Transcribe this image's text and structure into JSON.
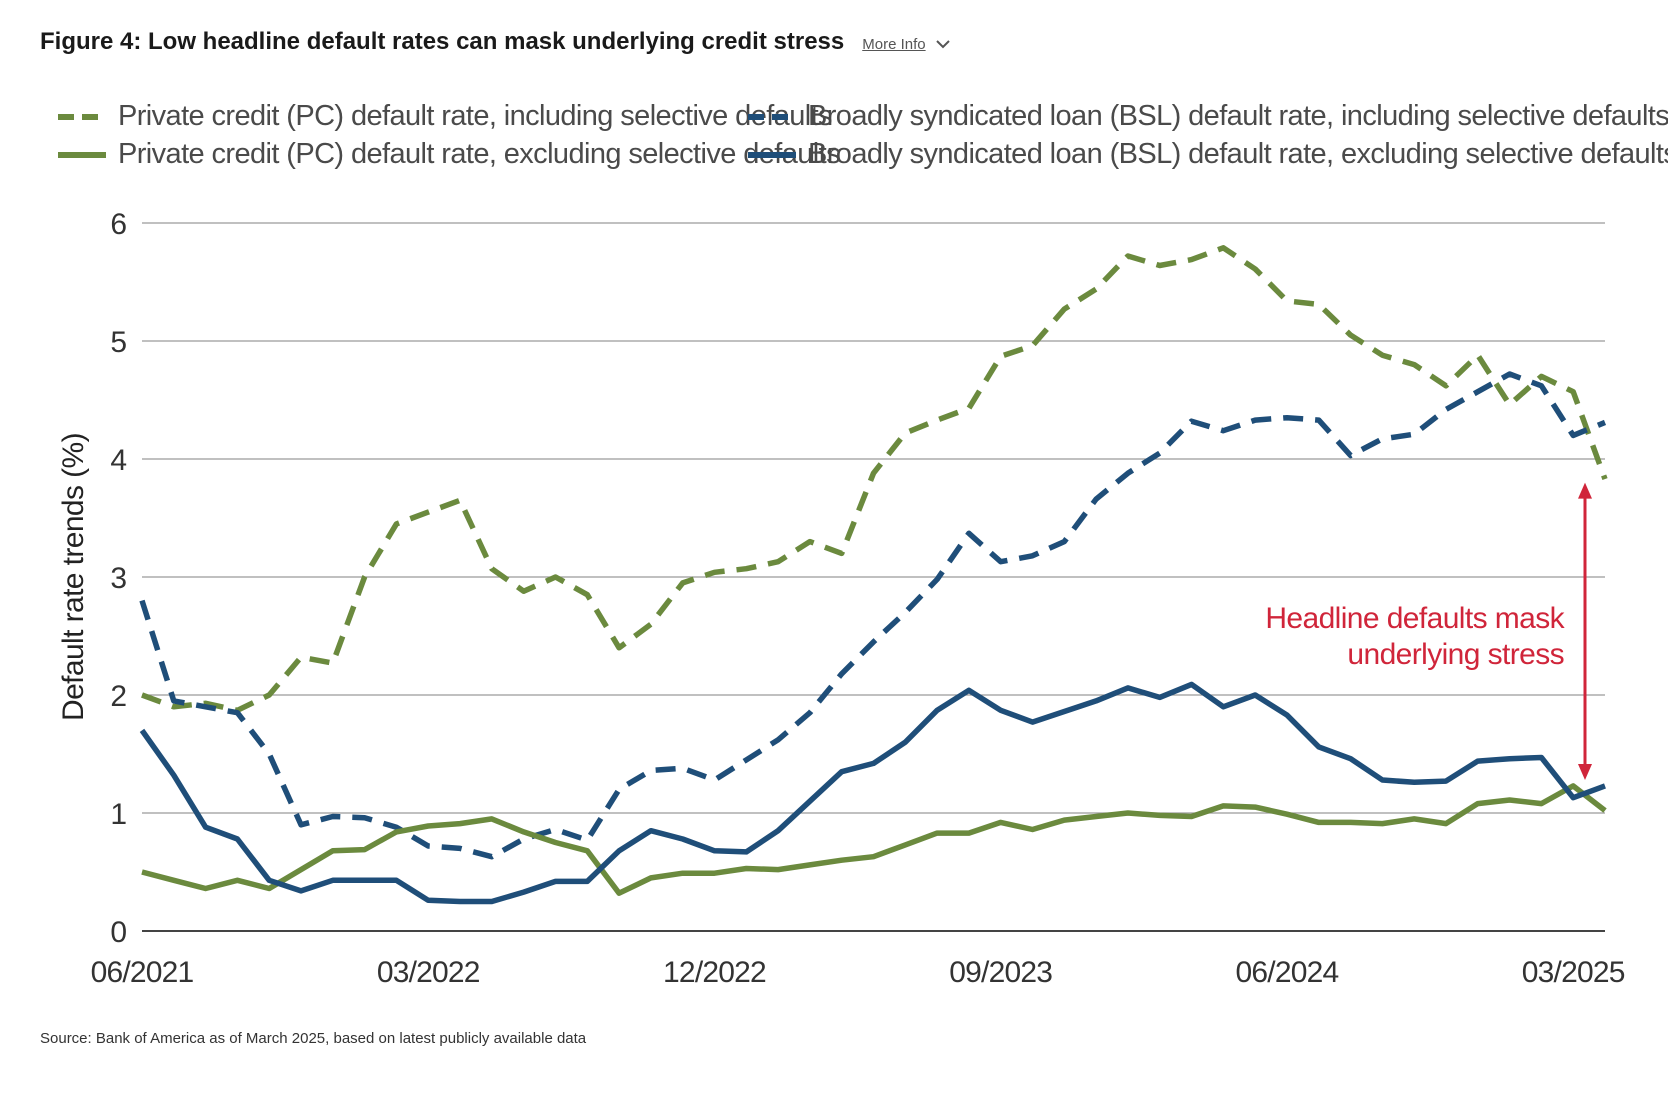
{
  "header": {
    "title": "Figure 4: Low headline default rates can mask underlying credit stress",
    "more_info_label": "More Info",
    "more_info_icon": "chevron-down-icon"
  },
  "source_note": "Source: Bank of America as of March 2025, based on latest publicly available data",
  "colors": {
    "green": "#6b8a3e",
    "blue": "#1f4e79",
    "annotation": "#d0253a",
    "grid": "#9a9a9a"
  },
  "chart_data": {
    "type": "line",
    "title": "Figure 4: Low headline default rates can mask underlying credit stress",
    "xlabel": "",
    "ylabel": "Default rate trends (%)",
    "ylim": [
      0,
      6
    ],
    "yticks": [
      "0",
      "1",
      "2",
      "3",
      "4",
      "5",
      "6"
    ],
    "xticks": [
      "06/2021",
      "03/2022",
      "12/2022",
      "09/2023",
      "06/2024",
      "03/2025"
    ],
    "x_range": [
      "06/2021",
      "03/2025"
    ],
    "grid": true,
    "legend_position": "top",
    "series": [
      {
        "name": "Private credit (PC) default rate, including selective defaults",
        "style": "dashed",
        "color": "#6b8a3e",
        "values": [
          2.0,
          1.9,
          1.93,
          1.87,
          2.0,
          2.32,
          2.27,
          3.0,
          3.45,
          3.55,
          3.65,
          3.07,
          2.88,
          3.0,
          2.85,
          2.4,
          2.6,
          2.95,
          3.04,
          3.07,
          3.13,
          3.3,
          3.2,
          3.88,
          4.22,
          4.33,
          4.43,
          4.87,
          4.96,
          5.27,
          5.44,
          5.72,
          5.64,
          5.69,
          5.79,
          5.61,
          5.34,
          5.31,
          5.05,
          4.88,
          4.8,
          4.62,
          4.88,
          4.46,
          4.7,
          4.57,
          3.83
        ]
      },
      {
        "name": "Broadly syndicated loan (BSL) default rate, including selective defaults",
        "style": "dashed",
        "color": "#1f4e79",
        "values": [
          2.8,
          1.95,
          1.9,
          1.85,
          1.5,
          0.9,
          0.97,
          0.96,
          0.88,
          0.72,
          0.7,
          0.63,
          0.78,
          0.86,
          0.77,
          1.2,
          1.36,
          1.38,
          1.28,
          1.45,
          1.62,
          1.85,
          2.18,
          2.45,
          2.7,
          2.98,
          3.37,
          3.13,
          3.18,
          3.3,
          3.66,
          3.88,
          4.05,
          4.32,
          4.24,
          4.33,
          4.35,
          4.33,
          4.03,
          4.17,
          4.21,
          4.42,
          4.57,
          4.72,
          4.62,
          4.2,
          4.31
        ]
      },
      {
        "name": "Private credit (PC) default rate, excluding selective defaults",
        "style": "solid",
        "color": "#6b8a3e",
        "values": [
          0.5,
          0.43,
          0.36,
          0.43,
          0.36,
          0.52,
          0.68,
          0.69,
          0.84,
          0.89,
          0.91,
          0.95,
          0.84,
          0.75,
          0.68,
          0.32,
          0.45,
          0.49,
          0.49,
          0.53,
          0.52,
          0.56,
          0.6,
          0.63,
          0.73,
          0.83,
          0.83,
          0.92,
          0.86,
          0.94,
          0.97,
          1.0,
          0.98,
          0.97,
          1.06,
          1.05,
          0.99,
          0.92,
          0.92,
          0.91,
          0.95,
          0.91,
          1.08,
          1.11,
          1.08,
          1.23,
          1.02
        ]
      },
      {
        "name": "Broadly syndicated loan (BSL) default rate, excluding selective defaults",
        "style": "solid",
        "color": "#1f4e79",
        "values": [
          1.7,
          1.32,
          0.88,
          0.78,
          0.43,
          0.34,
          0.43,
          0.43,
          0.43,
          0.26,
          0.25,
          0.25,
          0.33,
          0.42,
          0.42,
          0.68,
          0.85,
          0.78,
          0.68,
          0.67,
          0.85,
          1.1,
          1.35,
          1.42,
          1.6,
          1.87,
          2.04,
          1.87,
          1.77,
          1.86,
          1.95,
          2.06,
          1.98,
          2.09,
          1.9,
          2.0,
          1.83,
          1.56,
          1.46,
          1.28,
          1.26,
          1.27,
          1.44,
          1.46,
          1.47,
          1.13,
          1.23
        ]
      }
    ],
    "annotation": {
      "text_line1": "Headline defaults mask",
      "text_line2": "underlying stress",
      "arrow_from_value": 3.8,
      "arrow_to_value": 1.28
    }
  }
}
